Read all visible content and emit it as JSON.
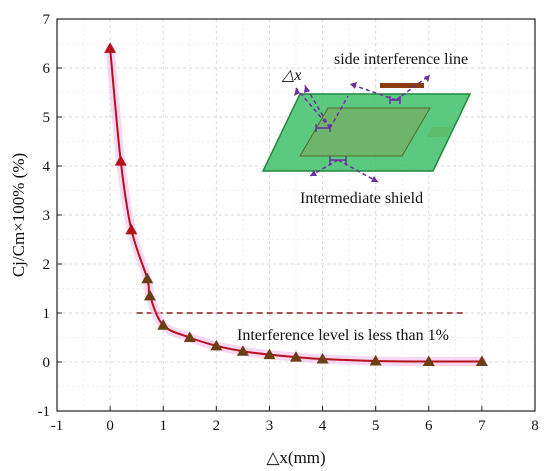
{
  "chart_data": {
    "type": "line",
    "xlabel": "△x(mm)",
    "ylabel": "Cj/Cm×100% (%)",
    "xlim": [
      -1,
      8
    ],
    "ylim": [
      -1,
      7
    ],
    "x_ticks": [
      -1,
      0,
      1,
      2,
      3,
      4,
      5,
      6,
      7,
      8
    ],
    "y_ticks": [
      -1,
      0,
      1,
      2,
      3,
      4,
      5,
      6,
      7
    ],
    "grid": true,
    "series": [
      {
        "x": [
          0,
          0.2,
          0.4,
          0.7,
          0.75,
          1.0,
          1.5,
          2.0,
          2.5,
          3.0,
          3.5,
          4.0,
          5.0,
          6.0,
          7.0
        ],
        "y": [
          6.4,
          4.1,
          2.7,
          1.7,
          1.35,
          0.75,
          0.5,
          0.33,
          0.22,
          0.15,
          0.1,
          0.06,
          0.02,
          0.01,
          0.01
        ],
        "line_color": "#b5121b",
        "marker": "triangle",
        "marker_color": "#6b3e13"
      }
    ],
    "threshold_line": {
      "y": 1,
      "x_range": [
        0.5,
        6.7
      ],
      "color": "#8b1a1a",
      "style": "dashed"
    },
    "annotations": {
      "threshold_text": "Interference level is less than 1%",
      "inset_labels": {
        "delta_x": "△x",
        "side_line": "side interference line",
        "shield": "Intermediate shield"
      }
    },
    "colors": {
      "shield_green": "#3fbf6a",
      "shield_edge": "#1f8a3c",
      "inner_plate": "#7fa35a",
      "side_line": "#8a3b12",
      "orange_patch": "#f2b27a",
      "arrow_purple": "#6a2fa0"
    }
  }
}
